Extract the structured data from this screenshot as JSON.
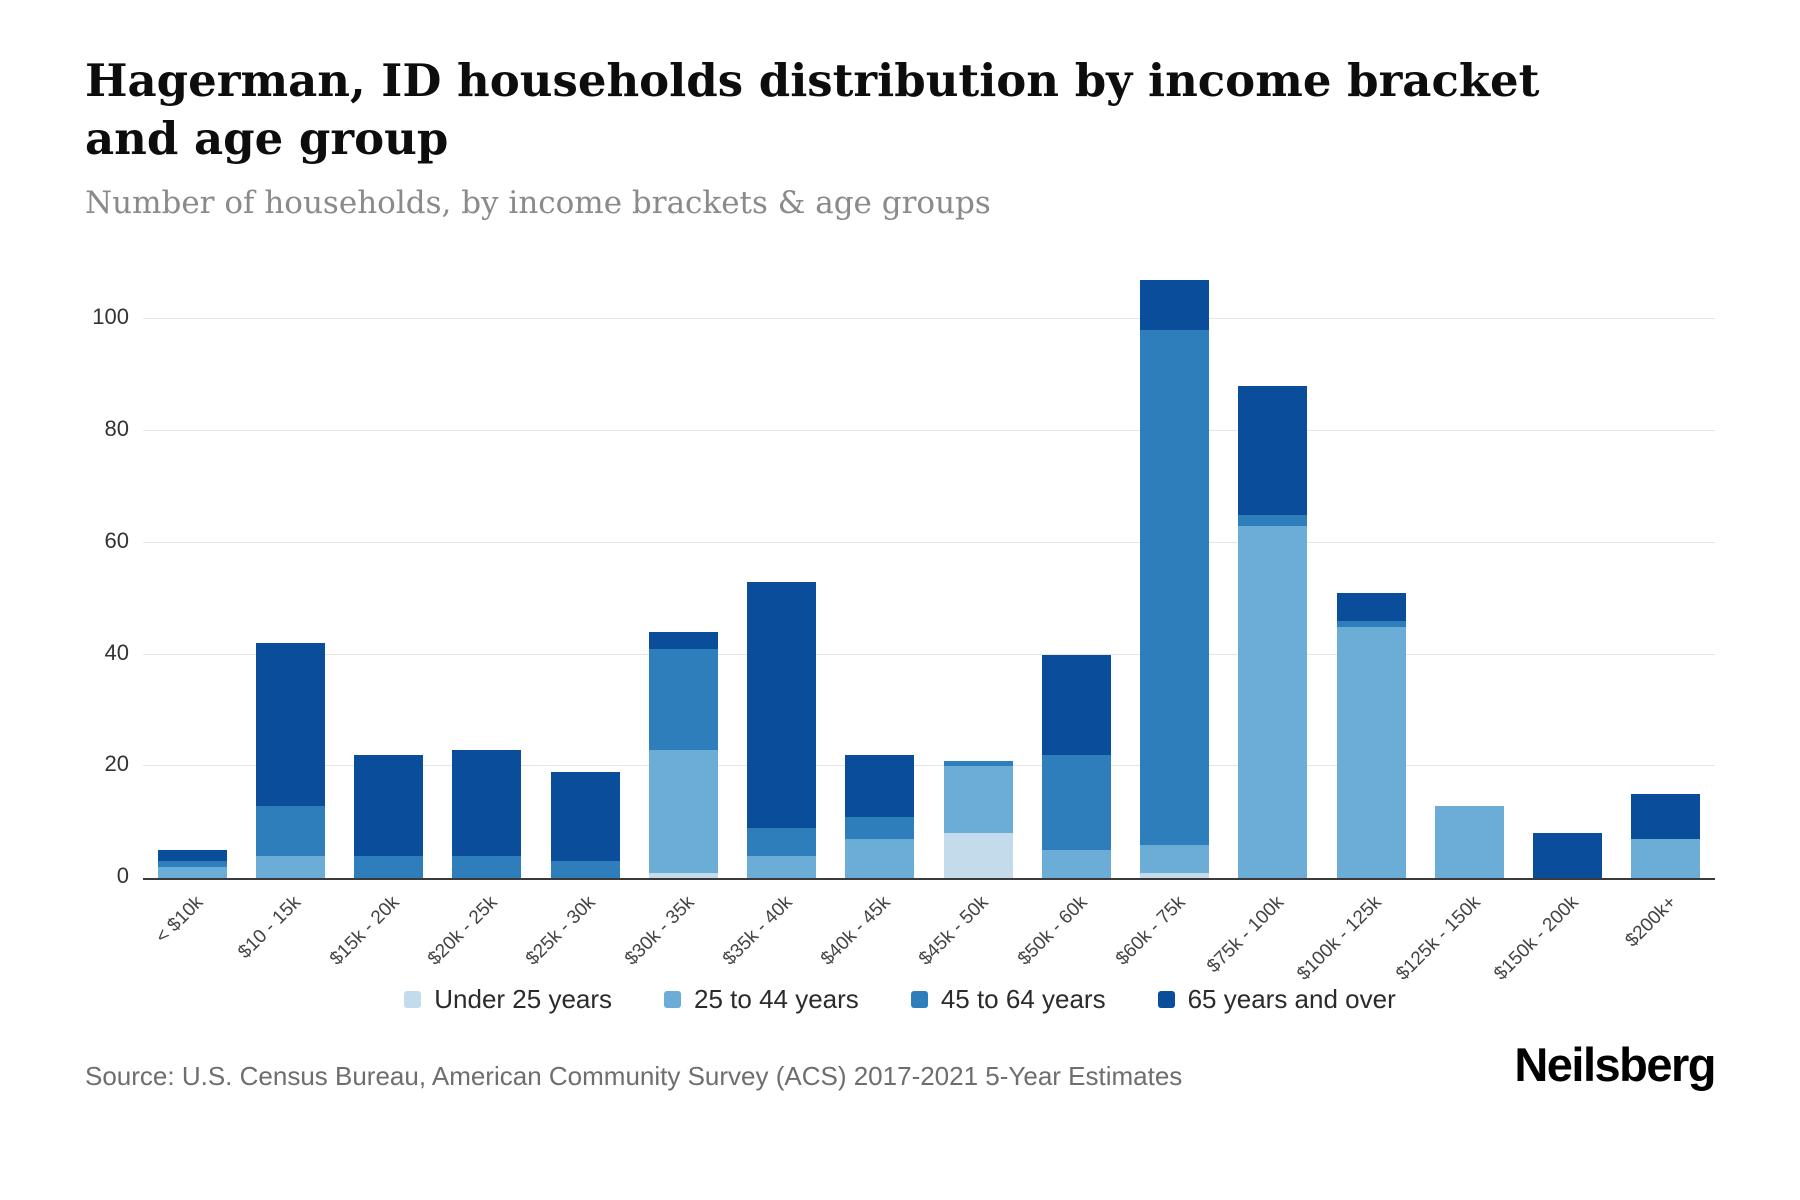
{
  "header": {
    "title": "Hagerman, ID households distribution by income bracket and age group",
    "subtitle": "Number of households, by income brackets & age groups"
  },
  "footer": {
    "source": "Source: U.S. Census Bureau, American Community Survey (ACS) 2017-2021 5-Year Estimates",
    "brand": "Neilsberg"
  },
  "chart_data": {
    "type": "bar",
    "stacked": true,
    "title": "Hagerman, ID households distribution by income bracket and age group",
    "xlabel": "",
    "ylabel": "Number of households",
    "ylim": [
      0,
      110
    ],
    "yticks": [
      0,
      20,
      40,
      60,
      80,
      100
    ],
    "grid": true,
    "legend_position": "bottom",
    "categories": [
      "< $10k",
      "$10 - 15k",
      "$15k - 20k",
      "$20k - 25k",
      "$25k - 30k",
      "$30k - 35k",
      "$35k - 40k",
      "$40k - 45k",
      "$45k - 50k",
      "$50k - 60k",
      "$60k - 75k",
      "$75k - 100k",
      "$100k - 125k",
      "$125k - 150k",
      "$150k - 200k",
      "$200k+"
    ],
    "series": [
      {
        "name": "Under 25 years",
        "color": "#c3dbeb",
        "values": [
          0,
          0,
          0,
          0,
          0,
          1,
          0,
          0,
          8,
          0,
          1,
          0,
          0,
          0,
          0,
          0
        ]
      },
      {
        "name": "25 to 44 years",
        "color": "#6badd6",
        "values": [
          2,
          4,
          0,
          0,
          0,
          22,
          4,
          7,
          12,
          5,
          5,
          63,
          45,
          13,
          0,
          7
        ]
      },
      {
        "name": "45 to 64 years",
        "color": "#2e7ebc",
        "values": [
          1,
          9,
          4,
          4,
          3,
          18,
          5,
          4,
          1,
          17,
          92,
          2,
          1,
          0,
          0,
          0
        ]
      },
      {
        "name": "65 years and over",
        "color": "#0a4e9b",
        "values": [
          2,
          29,
          18,
          19,
          16,
          3,
          44,
          11,
          0,
          18,
          9,
          23,
          5,
          0,
          8,
          8
        ]
      }
    ],
    "totals": [
      5,
      42,
      22,
      23,
      19,
      44,
      53,
      22,
      21,
      40,
      107,
      88,
      51,
      13,
      8,
      15
    ]
  }
}
